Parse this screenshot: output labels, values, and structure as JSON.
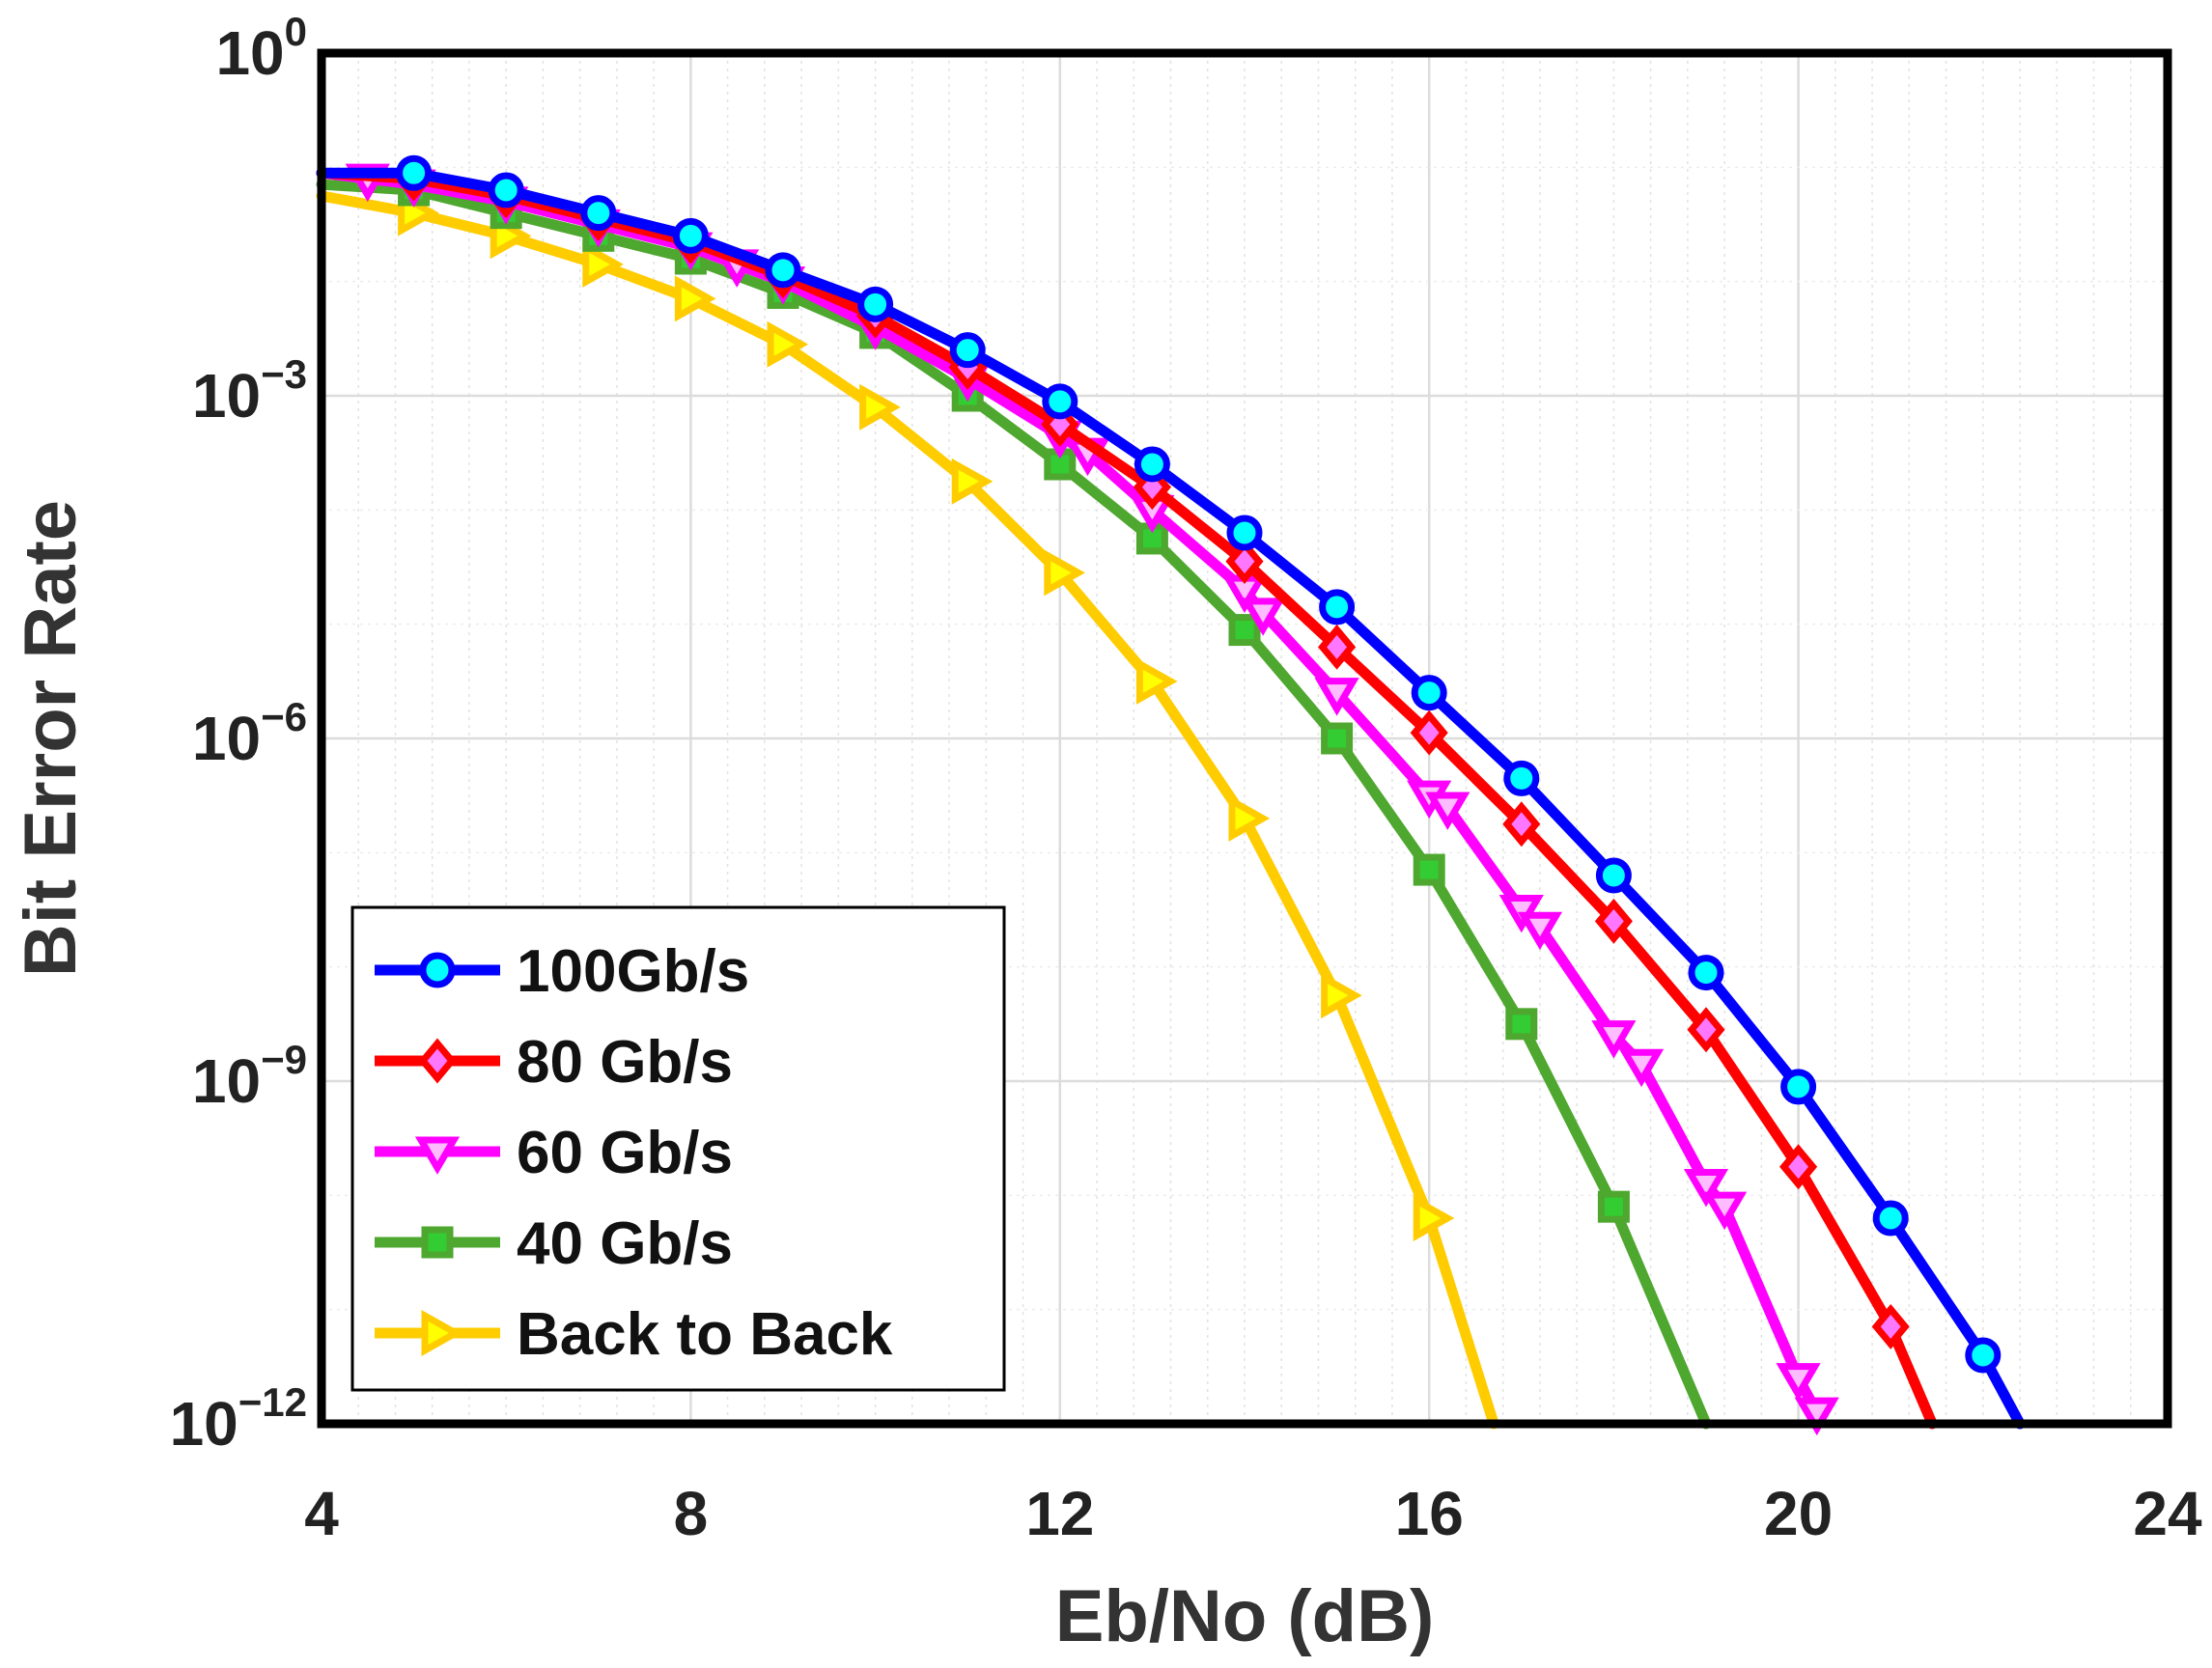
{
  "chart_data": {
    "type": "line",
    "title": "",
    "xlabel": "Eb/No (dB)",
    "ylabel": "Bit Error Rate",
    "xlim": [
      4,
      24
    ],
    "ylim_exponent": [
      -12,
      0
    ],
    "y_scale": "log",
    "x_ticks": [
      {
        "value": 4,
        "label": "4"
      },
      {
        "value": 8,
        "label": "8"
      },
      {
        "value": 12,
        "label": "12"
      },
      {
        "value": 16,
        "label": "16"
      },
      {
        "value": 20,
        "label": "20"
      },
      {
        "value": 24,
        "label": "24"
      }
    ],
    "y_ticks": [
      {
        "exponent": 0,
        "base": "10",
        "sup": "0"
      },
      {
        "exponent": -3,
        "base": "10",
        "sup": "−3"
      },
      {
        "exponent": -6,
        "base": "10",
        "sup": "−6"
      },
      {
        "exponent": -9,
        "base": "10",
        "sup": "−9"
      },
      {
        "exponent": -12,
        "base": "10",
        "sup": "−12"
      }
    ],
    "grid": true,
    "legend_position": "bottom-left",
    "series": [
      {
        "name": "100Gb/s",
        "legend_label": "100Gb/s",
        "color": "#0000ff",
        "marker_fill": "#00ffff",
        "marker": "circle",
        "x": [
          4,
          5,
          6,
          7,
          8,
          9,
          10,
          11,
          12,
          13,
          14,
          15,
          16,
          17,
          18,
          19,
          20,
          21,
          22,
          22.4
        ],
        "log10_y": [
          -1.05,
          -1.05,
          -1.2,
          -1.4,
          -1.6,
          -1.9,
          -2.2,
          -2.6,
          -3.05,
          -3.6,
          -4.2,
          -4.85,
          -5.6,
          -6.35,
          -7.2,
          -8.05,
          -9.05,
          -10.2,
          -11.4,
          -12
        ]
      },
      {
        "name": "80 Gb/s",
        "legend_label": " 80 Gb/s",
        "color": "#ff0000",
        "marker_fill": "#ff77ff",
        "marker": "diamond",
        "x": [
          4,
          5,
          6,
          7,
          8,
          9,
          10,
          11,
          12,
          13,
          14,
          15,
          16,
          17,
          18,
          19,
          20,
          21,
          21.45
        ],
        "log10_y": [
          -1.05,
          -1.1,
          -1.25,
          -1.45,
          -1.65,
          -1.95,
          -2.3,
          -2.75,
          -3.25,
          -3.8,
          -4.45,
          -5.2,
          -5.95,
          -6.75,
          -7.6,
          -8.55,
          -9.75,
          -11.15,
          -12
        ]
      },
      {
        "name": "60 Gb/s",
        "legend_label": " 60 Gb/s",
        "color": "#ff00ff",
        "marker_fill": "#ffbbff",
        "marker": "triangle-down",
        "x": [
          4,
          4.5,
          5,
          6,
          7,
          8,
          8.5,
          9,
          10,
          11,
          12,
          12.3,
          13,
          14,
          14.2,
          15,
          16,
          16.2,
          17,
          17.2,
          18,
          18.3,
          19,
          19.2,
          20,
          20.2
        ],
        "log10_y": [
          -1.05,
          -1.1,
          -1.15,
          -1.3,
          -1.5,
          -1.7,
          -1.85,
          -2.0,
          -2.4,
          -2.85,
          -3.35,
          -3.5,
          -4.0,
          -4.7,
          -4.9,
          -5.6,
          -6.5,
          -6.6,
          -7.5,
          -7.65,
          -8.6,
          -8.85,
          -9.9,
          -10.1,
          -11.6,
          -11.9
        ]
      },
      {
        "name": "40 Gb/s",
        "legend_label": " 40 Gb/s",
        "color": "#4ea72e",
        "marker_fill": "#33cc33",
        "marker": "square",
        "x": [
          4,
          5,
          6,
          7,
          8,
          9,
          10,
          11,
          12,
          13,
          14,
          15,
          16,
          17,
          18,
          19
        ],
        "log10_y": [
          -1.15,
          -1.2,
          -1.4,
          -1.6,
          -1.8,
          -2.1,
          -2.45,
          -3.0,
          -3.6,
          -4.25,
          -5.05,
          -6.0,
          -7.15,
          -8.5,
          -10.1,
          -12
        ]
      },
      {
        "name": "Back to Back",
        "legend_label": " Back to Back",
        "color": "#ffcc00",
        "marker_fill": "#ffff00",
        "marker": "triangle-right",
        "x": [
          4,
          5,
          6,
          7,
          8,
          9,
          10,
          11,
          12,
          13,
          14,
          15,
          16,
          16.7
        ],
        "log10_y": [
          -1.25,
          -1.4,
          -1.6,
          -1.85,
          -2.15,
          -2.55,
          -3.1,
          -3.75,
          -4.55,
          -5.5,
          -6.7,
          -8.25,
          -10.2,
          -12
        ]
      }
    ]
  }
}
